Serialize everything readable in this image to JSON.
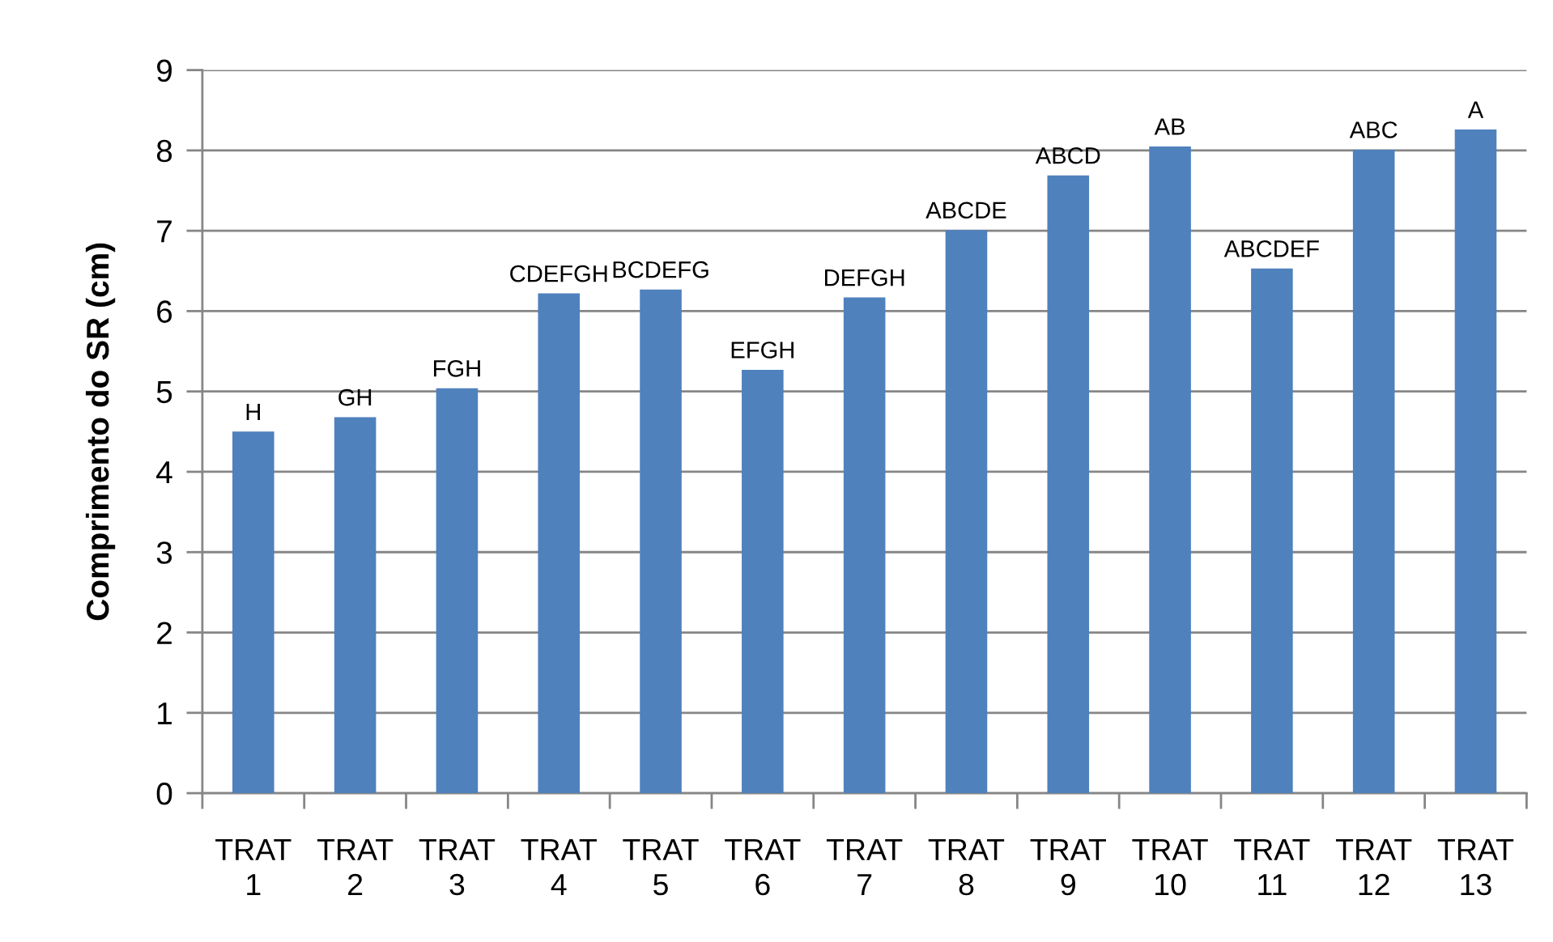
{
  "chart_data": {
    "type": "bar",
    "ylabel": "Comprimento do SR (cm)",
    "categories": [
      "TRAT\n1",
      "TRAT\n2",
      "TRAT\n3",
      "TRAT\n4",
      "TRAT\n5",
      "TRAT\n6",
      "TRAT\n7",
      "TRAT\n8",
      "TRAT\n9",
      "TRAT\n10",
      "TRAT\n11",
      "TRAT\n12",
      "TRAT\n13"
    ],
    "values": [
      4.5,
      4.68,
      5.04,
      6.22,
      6.27,
      5.27,
      6.17,
      7.01,
      7.69,
      8.05,
      6.53,
      8.01,
      8.26
    ],
    "value_labels": [
      "H",
      "GH",
      "FGH",
      "CDEFGH",
      "BCDEFG",
      "EFGH",
      "DEFGH",
      "ABCDE",
      "ABCD",
      "AB",
      "ABCDEF",
      "ABC",
      "A"
    ],
    "color": "#4f81bd",
    "ylim": [
      0,
      9
    ],
    "yticks": [
      0,
      1,
      2,
      3,
      4,
      5,
      6,
      7,
      8,
      9
    ],
    "grid": "y"
  }
}
